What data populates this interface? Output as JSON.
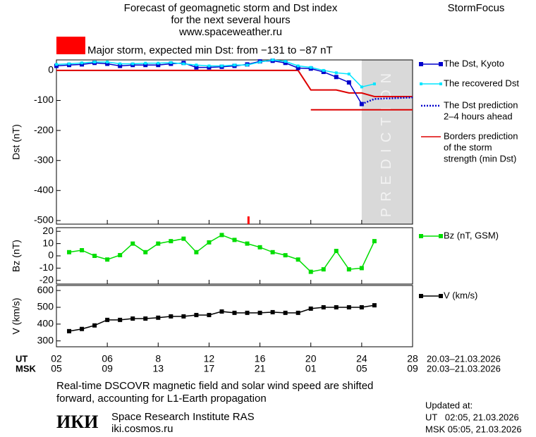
{
  "header": {
    "title_lines": [
      "Forecast of geomagnetic storm and Dst index",
      "for the next several hours",
      "www.spaceweather.ru"
    ],
    "brand": "StormFocus",
    "storm_label": "Major storm, expected min Dst: from −131 to −87 nT",
    "storm_color": "#ff0000"
  },
  "chart_data": [
    {
      "type": "line",
      "y_label": "Dst (nT)",
      "ylim": [
        -512,
        35
      ],
      "yticks": [
        0,
        -100,
        -200,
        -300,
        -400,
        -500
      ],
      "prediction_region": [
        24,
        28
      ],
      "prediction_label": "PREDICTION",
      "event_marker": {
        "x": 15.1,
        "color": "#ff0000"
      },
      "series": [
        {
          "name": [
            "The Dst, Kyoto"
          ],
          "color": "#0000cc",
          "marker": "square",
          "dash": false,
          "x": [
            0,
            1,
            2,
            3,
            4,
            5,
            6,
            7,
            8,
            9,
            10,
            11,
            12,
            13,
            14,
            15,
            16,
            17,
            18,
            19,
            20,
            21,
            22,
            23,
            24
          ],
          "values": [
            15,
            18,
            20,
            25,
            22,
            15,
            18,
            18,
            18,
            22,
            25,
            10,
            10,
            12,
            15,
            20,
            30,
            32,
            25,
            8,
            6,
            -5,
            -22,
            -40,
            -112
          ]
        },
        {
          "name": [
            "The recovered Dst"
          ],
          "color": "#00e5ff",
          "marker": "small",
          "dash": false,
          "x": [
            0,
            1,
            2,
            3,
            4,
            5,
            6,
            7,
            8,
            9,
            10,
            11,
            12,
            13,
            14,
            15,
            16,
            17,
            18,
            19,
            20,
            21,
            22,
            23,
            24,
            25
          ],
          "values": [
            20,
            22,
            25,
            28,
            28,
            22,
            22,
            24,
            24,
            26,
            22,
            18,
            15,
            15,
            18,
            18,
            28,
            35,
            30,
            15,
            10,
            0,
            -8,
            -12,
            -55,
            -45
          ]
        },
        {
          "name": [
            "The Dst prediction",
            "2–4 hours ahead"
          ],
          "color": "#0000cc",
          "marker": "none",
          "dash": true,
          "x": [
            24,
            25,
            28
          ],
          "values": [
            -112,
            -95,
            -90
          ]
        }
      ],
      "borders": {
        "name": [
          "Borders prediction",
          "of the storm",
          "strength (min Dst)"
        ],
        "color": "#dd0000",
        "lines": [
          {
            "x": [
              0,
              19,
              20,
              22,
              23,
              24,
              25,
              28
            ],
            "values": [
              0,
              0,
              -65,
              -65,
              -75,
              -75,
              -87,
              -87
            ]
          },
          {
            "x": [
              20,
              28
            ],
            "values": [
              -131,
              -131
            ]
          }
        ]
      }
    },
    {
      "type": "line",
      "y_label": "Bz (nT)",
      "ylim": [
        -23,
        23
      ],
      "yticks": [
        -20,
        -10,
        0,
        10,
        20
      ],
      "series": [
        {
          "name": [
            "Bz (nT, GSM)"
          ],
          "color": "#00dd00",
          "marker": "square",
          "dash": false,
          "x": [
            1,
            2,
            3,
            4,
            5,
            6,
            7,
            8,
            9,
            10,
            11,
            12,
            13,
            14,
            15,
            16,
            17,
            18,
            19,
            20,
            21,
            22,
            23,
            24,
            25
          ],
          "values": [
            3,
            4.6,
            0,
            -3,
            0.6,
            10,
            3,
            10,
            12,
            14,
            3,
            11,
            17,
            13,
            10,
            7,
            3,
            0.5,
            -3,
            -13,
            -11,
            4,
            -11,
            -10,
            12
          ]
        }
      ]
    },
    {
      "type": "line",
      "y_label": "V (km/s)",
      "ylim": [
        265,
        630
      ],
      "yticks": [
        300,
        400,
        500,
        600
      ],
      "xlim": [
        0,
        28
      ],
      "xticks": [
        {
          "value": 0,
          "label": "02"
        },
        {
          "value": 4,
          "label": "06"
        },
        8,
        12,
        16,
        20,
        24,
        28
      ],
      "x_axis_name": "UT",
      "x_date_range": "20.03–21.03.2026",
      "x2ticks": [
        {
          "value": 0,
          "label": "05"
        },
        {
          "value": 4,
          "label": "09"
        },
        {
          "value": 8,
          "label": "13"
        },
        {
          "value": 12,
          "label": "17"
        },
        {
          "value": 16,
          "label": "21"
        },
        {
          "value": 20,
          "label": "01"
        },
        {
          "value": 24,
          "label": "05"
        },
        {
          "value": 28,
          "label": "09"
        }
      ],
      "x2_axis_name": "MSK",
      "x2_date_range": "20.03–21.03.2026",
      "series": [
        {
          "name": [
            "V (km/s)"
          ],
          "color": "#000000",
          "marker": "square",
          "dash": false,
          "x": [
            1,
            2,
            3,
            4,
            5,
            6,
            7,
            8,
            9,
            10,
            11,
            12,
            13,
            14,
            15,
            16,
            17,
            18,
            19,
            20,
            21,
            22,
            23,
            24,
            25
          ],
          "values": [
            358,
            371,
            392,
            425,
            425,
            433,
            433,
            438,
            446,
            446,
            454,
            454,
            475,
            467,
            467,
            467,
            471,
            467,
            467,
            492,
            500,
            500,
            500,
            500,
            512
          ]
        }
      ]
    }
  ],
  "footer": {
    "note_lines": [
      "Real-time DSCOVR magnetic field and solar wind speed are shifted",
      "forward, accounting for L1-Earth propagation"
    ],
    "logo": "ИКИ",
    "institute": "Space Research Institute RAS",
    "site": "iki.cosmos.ru",
    "updated_title": "Updated at:",
    "updated_ut": "UT   02:05, 21.03.2026",
    "updated_msk": "MSK 05:05, 21.03.2026"
  }
}
